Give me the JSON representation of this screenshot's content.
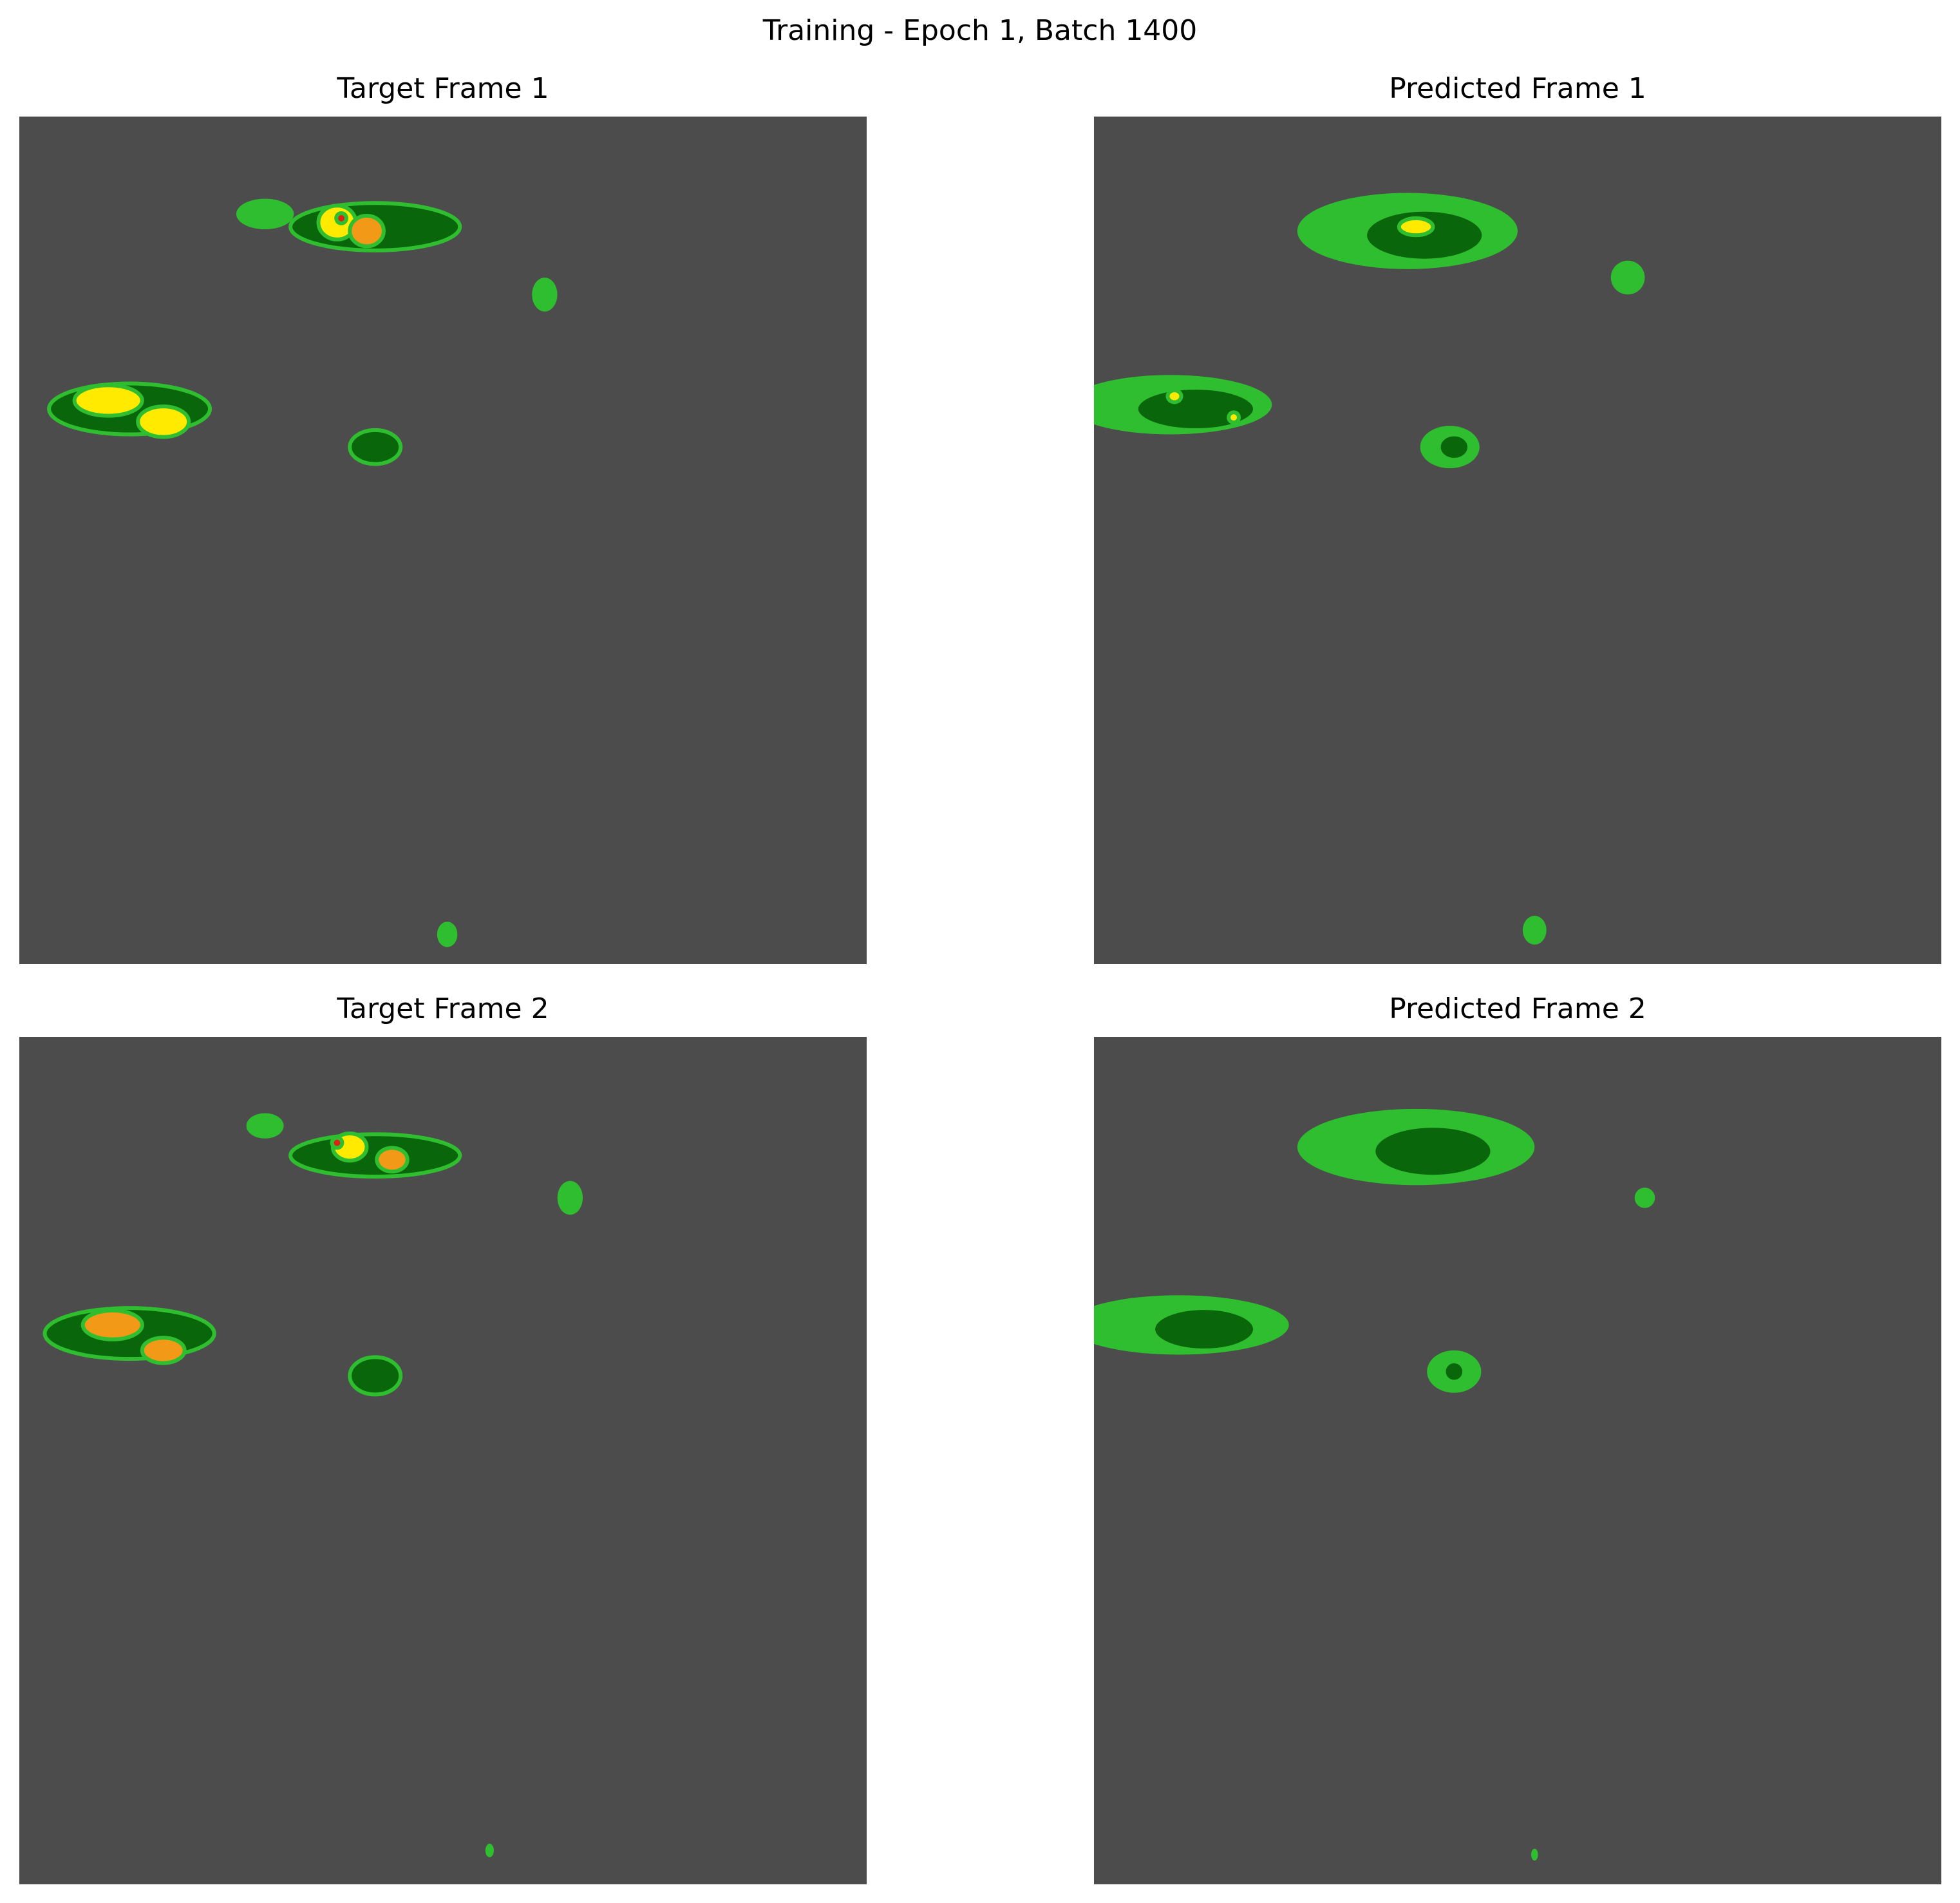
{
  "figure": {
    "title": "Training - Epoch 1, Batch 1400"
  },
  "colors": {
    "background": "#4c4c4c",
    "light_green": "#2fbe2f",
    "dark_green": "#0a660a",
    "yellow": "#ffea00",
    "orange": "#f29a18",
    "red": "#e02010"
  },
  "chart_data": [
    {
      "type": "heatmap",
      "title": "Target Frame 1",
      "grid": false,
      "axes": "off",
      "cells": [
        {
          "cx": 0.29,
          "cy": 0.115,
          "rx": 0.034,
          "ry": 0.018,
          "level": 1
        },
        {
          "cx": 0.42,
          "cy": 0.13,
          "rx": 0.1,
          "ry": 0.028,
          "level": 2
        },
        {
          "cx": 0.375,
          "cy": 0.125,
          "rx": 0.022,
          "ry": 0.02,
          "level": 3
        },
        {
          "cx": 0.41,
          "cy": 0.135,
          "rx": 0.02,
          "ry": 0.018,
          "level": 4
        },
        {
          "cx": 0.38,
          "cy": 0.12,
          "rx": 0.006,
          "ry": 0.006,
          "level": 5
        },
        {
          "cx": 0.13,
          "cy": 0.345,
          "rx": 0.095,
          "ry": 0.03,
          "level": 2
        },
        {
          "cx": 0.105,
          "cy": 0.335,
          "rx": 0.04,
          "ry": 0.018,
          "level": 3
        },
        {
          "cx": 0.17,
          "cy": 0.36,
          "rx": 0.03,
          "ry": 0.018,
          "level": 3
        },
        {
          "cx": 0.42,
          "cy": 0.39,
          "rx": 0.03,
          "ry": 0.02,
          "level": 2
        },
        {
          "cx": 0.62,
          "cy": 0.21,
          "rx": 0.015,
          "ry": 0.02,
          "level": 1
        },
        {
          "cx": 0.505,
          "cy": 0.965,
          "rx": 0.012,
          "ry": 0.015,
          "level": 1
        }
      ]
    },
    {
      "type": "heatmap",
      "title": "Predicted Frame 1",
      "grid": false,
      "axes": "off",
      "cells": [
        {
          "cx": 0.37,
          "cy": 0.135,
          "rx": 0.13,
          "ry": 0.045,
          "level": 1
        },
        {
          "cx": 0.39,
          "cy": 0.14,
          "rx": 0.07,
          "ry": 0.03,
          "level": 2
        },
        {
          "cx": 0.38,
          "cy": 0.13,
          "rx": 0.02,
          "ry": 0.01,
          "level": 3
        },
        {
          "cx": 0.09,
          "cy": 0.34,
          "rx": 0.12,
          "ry": 0.035,
          "level": 1
        },
        {
          "cx": 0.12,
          "cy": 0.345,
          "rx": 0.07,
          "ry": 0.025,
          "level": 2
        },
        {
          "cx": 0.095,
          "cy": 0.33,
          "rx": 0.008,
          "ry": 0.007,
          "level": 3
        },
        {
          "cx": 0.165,
          "cy": 0.355,
          "rx": 0.006,
          "ry": 0.006,
          "level": 3
        },
        {
          "cx": 0.42,
          "cy": 0.39,
          "rx": 0.035,
          "ry": 0.025,
          "level": 1
        },
        {
          "cx": 0.425,
          "cy": 0.39,
          "rx": 0.018,
          "ry": 0.015,
          "level": 2
        },
        {
          "cx": 0.63,
          "cy": 0.19,
          "rx": 0.02,
          "ry": 0.02,
          "level": 1
        },
        {
          "cx": 0.52,
          "cy": 0.96,
          "rx": 0.014,
          "ry": 0.017,
          "level": 1
        }
      ]
    },
    {
      "type": "heatmap",
      "title": "Target Frame 2",
      "grid": false,
      "axes": "off",
      "cells": [
        {
          "cx": 0.29,
          "cy": 0.105,
          "rx": 0.022,
          "ry": 0.015,
          "level": 1
        },
        {
          "cx": 0.42,
          "cy": 0.14,
          "rx": 0.1,
          "ry": 0.025,
          "level": 2
        },
        {
          "cx": 0.39,
          "cy": 0.13,
          "rx": 0.02,
          "ry": 0.016,
          "level": 3
        },
        {
          "cx": 0.44,
          "cy": 0.145,
          "rx": 0.018,
          "ry": 0.014,
          "level": 4
        },
        {
          "cx": 0.375,
          "cy": 0.125,
          "rx": 0.006,
          "ry": 0.006,
          "level": 5
        },
        {
          "cx": 0.13,
          "cy": 0.35,
          "rx": 0.1,
          "ry": 0.03,
          "level": 2
        },
        {
          "cx": 0.11,
          "cy": 0.34,
          "rx": 0.035,
          "ry": 0.017,
          "level": 4
        },
        {
          "cx": 0.17,
          "cy": 0.37,
          "rx": 0.025,
          "ry": 0.015,
          "level": 4
        },
        {
          "cx": 0.42,
          "cy": 0.4,
          "rx": 0.03,
          "ry": 0.022,
          "level": 2
        },
        {
          "cx": 0.65,
          "cy": 0.19,
          "rx": 0.015,
          "ry": 0.02,
          "level": 1
        },
        {
          "cx": 0.555,
          "cy": 0.96,
          "rx": 0.005,
          "ry": 0.008,
          "level": 1
        }
      ]
    },
    {
      "type": "heatmap",
      "title": "Predicted Frame 2",
      "grid": false,
      "axes": "off",
      "cells": [
        {
          "cx": 0.38,
          "cy": 0.13,
          "rx": 0.14,
          "ry": 0.045,
          "level": 1
        },
        {
          "cx": 0.4,
          "cy": 0.135,
          "rx": 0.07,
          "ry": 0.03,
          "level": 2
        },
        {
          "cx": 0.1,
          "cy": 0.34,
          "rx": 0.13,
          "ry": 0.035,
          "level": 1
        },
        {
          "cx": 0.13,
          "cy": 0.345,
          "rx": 0.06,
          "ry": 0.025,
          "level": 2
        },
        {
          "cx": 0.425,
          "cy": 0.395,
          "rx": 0.032,
          "ry": 0.025,
          "level": 1
        },
        {
          "cx": 0.425,
          "cy": 0.395,
          "rx": 0.012,
          "ry": 0.012,
          "level": 2
        },
        {
          "cx": 0.65,
          "cy": 0.19,
          "rx": 0.012,
          "ry": 0.012,
          "level": 1
        },
        {
          "cx": 0.52,
          "cy": 0.965,
          "rx": 0.004,
          "ry": 0.007,
          "level": 1
        }
      ]
    }
  ]
}
